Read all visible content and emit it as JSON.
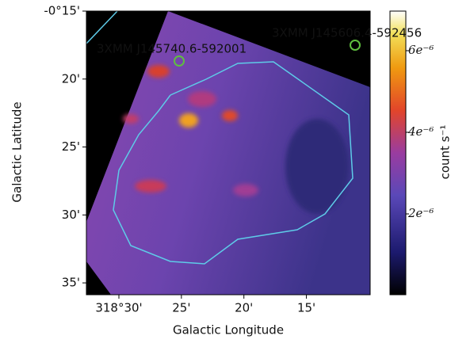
{
  "chart_data": {
    "type": "image",
    "xlabel": "Galactic Longitude",
    "ylabel": "Galactic Latitude",
    "xlim": [
      19112.6,
      19089.9
    ],
    "xticks": [
      {
        "value": 19110,
        "label": "318°30'"
      },
      {
        "value": 19105,
        "label": "25'"
      },
      {
        "value": 19100,
        "label": "20'"
      },
      {
        "value": 19095,
        "label": "15'"
      }
    ],
    "ylim": [
      -35.87,
      -15
    ],
    "yticks": [
      {
        "value": -15,
        "label": "-0°15'"
      },
      {
        "value": -20,
        "label": "20'"
      },
      {
        "value": -25,
        "label": "25'"
      },
      {
        "value": -30,
        "label": "30'"
      },
      {
        "value": -35,
        "label": "35'"
      }
    ],
    "colorbar": {
      "label": "count s⁻¹",
      "lim": [
        2e-08,
        6.97e-06
      ],
      "ticks": [
        {
          "value": 2e-06,
          "label": "2e⁻⁶"
        },
        {
          "value": 4e-06,
          "label": "4e⁻⁶"
        },
        {
          "value": 6e-06,
          "label": "6e⁻⁶"
        }
      ]
    },
    "annotations": [
      "3XMM J145740.6-592001",
      "3XMM J145606.4-592456"
    ],
    "annotation_color": "#5fbf3f",
    "contour_color": "#5ecbe8"
  }
}
